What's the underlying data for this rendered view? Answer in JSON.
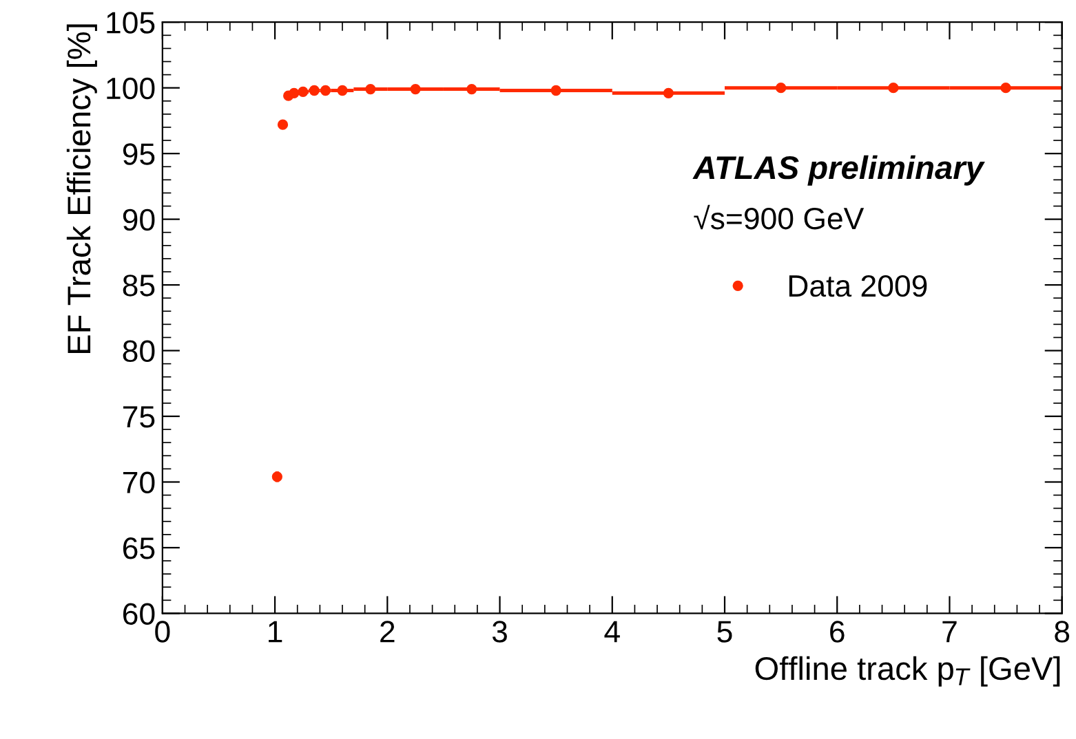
{
  "chart_data": {
    "type": "scatter",
    "xlabel": "Offline track p$_{T}$ [GeV]",
    "ylabel": "EF Track Efficiency [%]",
    "xlim": [
      0,
      8
    ],
    "ylim": [
      60,
      105
    ],
    "xticks": [
      0,
      1,
      2,
      3,
      4,
      5,
      6,
      7,
      8
    ],
    "yticks": [
      60,
      65,
      70,
      75,
      80,
      85,
      90,
      95,
      100,
      105
    ],
    "grid": false,
    "legend": "right",
    "marker": "circle",
    "annotations": [
      "ATLAS preliminary",
      "√s=900 GeV"
    ],
    "series": [
      {
        "name": "Data 2009",
        "color": "#ff2a00",
        "x": [
          1.02,
          1.07,
          1.12,
          1.17,
          1.25,
          1.35,
          1.45,
          1.6,
          1.85,
          2.25,
          2.75,
          3.5,
          4.5,
          5.5,
          6.5,
          7.5
        ],
        "values": [
          70.4,
          97.2,
          99.4,
          99.6,
          99.7,
          99.8,
          99.8,
          99.8,
          99.9,
          99.9,
          99.9,
          99.8,
          99.6,
          100,
          100,
          100
        ],
        "errors": [
          0.4,
          null,
          null,
          null,
          null,
          null,
          null,
          null,
          null,
          null,
          null,
          null,
          0.3,
          null,
          null,
          null
        ],
        "xerrors": [
          0.02,
          0.03,
          0.02,
          0.03,
          0.05,
          0.05,
          0.05,
          0.1,
          0.15,
          0.25,
          0.25,
          0.5,
          0.5,
          0.5,
          0.5,
          0.5
        ]
      }
    ]
  }
}
